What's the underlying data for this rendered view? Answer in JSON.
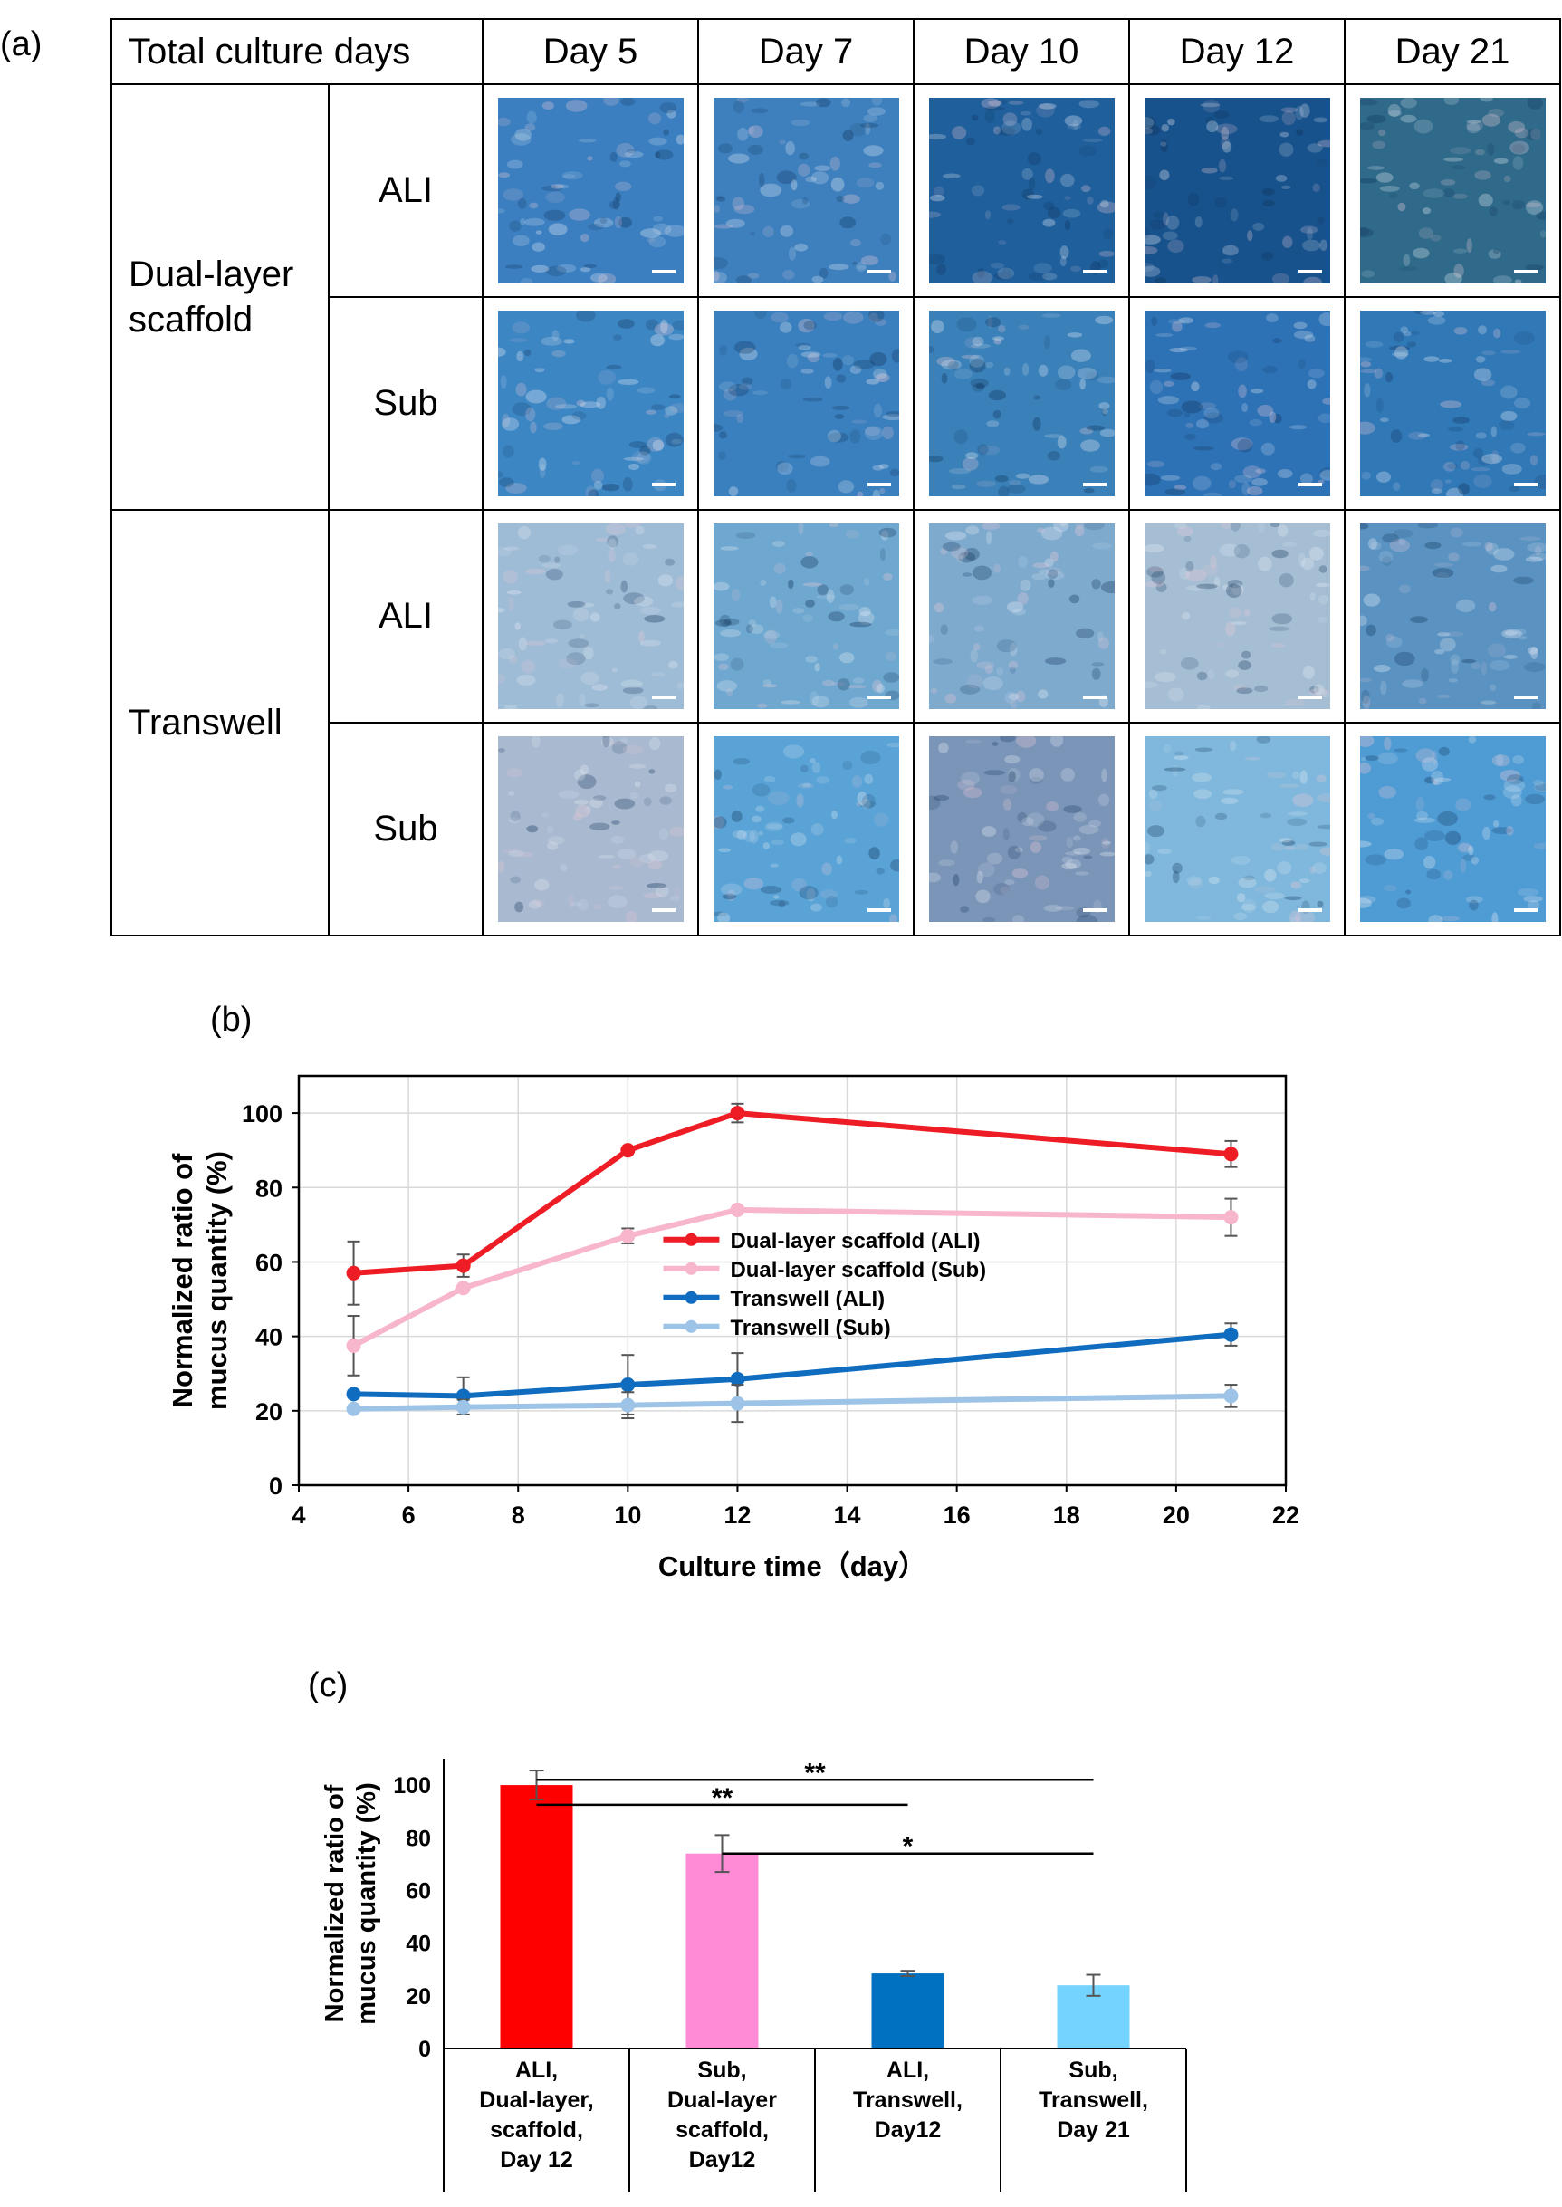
{
  "panels": {
    "a": "(a)",
    "b": "(b)",
    "c": "(c)"
  },
  "table": {
    "header": [
      "Total culture days",
      "Day 5",
      "Day 7",
      "Day 10",
      "Day 12",
      "Day 21"
    ],
    "groups": [
      {
        "label_lines": [
          "Dual-layer",
          "scaffold"
        ],
        "rows": [
          {
            "label": "ALI",
            "tones": [
              "#3b7fc0",
              "#3e80be",
              "#1f5f9c",
              "#18528c",
              "#2f6a8a"
            ]
          },
          {
            "label": "Sub",
            "tones": [
              "#3d86c4",
              "#3a7fbe",
              "#3a80b9",
              "#2e72b6",
              "#3178b7"
            ]
          }
        ]
      },
      {
        "label_lines": [
          "Transwell"
        ],
        "rows": [
          {
            "label": "ALI",
            "tones": [
              "#9fbcd6",
              "#6ea7cf",
              "#7eaace",
              "#a5bed4",
              "#5a93c2"
            ]
          },
          {
            "label": "Sub",
            "tones": [
              "#a8b9d0",
              "#5aa3d6",
              "#7b95b8",
              "#7fb8dc",
              "#4f9bd4"
            ]
          }
        ]
      }
    ],
    "tile_colors": {
      "light": "#e9eef5",
      "dark": "#0d2f55",
      "pink": "#e9c9d6",
      "scale_bar": "#ffffff"
    }
  },
  "chart_data": [
    {
      "type": "line",
      "panel": "(b)",
      "xlabel": "Culture time（day）",
      "ylabel_lines": [
        "Normalized ratio of",
        "mucus quantity  (%)"
      ],
      "xlim": [
        4,
        22
      ],
      "ylim": [
        0,
        110
      ],
      "xticks": [
        4,
        6,
        8,
        10,
        12,
        14,
        16,
        18,
        20,
        22
      ],
      "yticks": [
        0,
        20,
        40,
        60,
        80,
        100
      ],
      "grid": true,
      "legend_position": "center-right",
      "series": [
        {
          "name": "Dual-layer scaffold (ALI)",
          "color": "#ee1c24",
          "x": [
            5,
            7,
            10,
            12,
            21
          ],
          "y": [
            57,
            59,
            90,
            100,
            89
          ],
          "err": [
            8.5,
            3,
            0,
            2.5,
            3.5
          ]
        },
        {
          "name": "Dual-layer scaffold (Sub)",
          "color": "#f7b6cc",
          "x": [
            5,
            7,
            10,
            12,
            21
          ],
          "y": [
            37.5,
            53,
            67,
            74,
            72
          ],
          "err": [
            8,
            0,
            2,
            0,
            5
          ]
        },
        {
          "name": "Transwell (ALI)",
          "color": "#0f6cbf",
          "x": [
            5,
            7,
            10,
            12,
            21
          ],
          "y": [
            24.5,
            24,
            27,
            28.5,
            40.5
          ],
          "err": [
            0,
            5,
            8,
            7,
            3
          ]
        },
        {
          "name": "Transwell (Sub)",
          "color": "#9dc3e6",
          "x": [
            5,
            7,
            10,
            12,
            21
          ],
          "y": [
            20.5,
            21,
            21.5,
            22,
            24
          ],
          "err": [
            0,
            2,
            3.5,
            5,
            3
          ]
        }
      ]
    },
    {
      "type": "bar",
      "panel": "(c)",
      "ylabel_lines": [
        "Normalized ratio of",
        "mucus quantity  (%)"
      ],
      "ylim": [
        0,
        110
      ],
      "yticks": [
        0,
        20,
        40,
        60,
        80,
        100
      ],
      "grid": false,
      "categories": [
        [
          "ALI,",
          "Dual-layer,",
          "scaffold,",
          "Day 12"
        ],
        [
          "Sub,",
          "Dual-layer",
          "scaffold,",
          "Day12"
        ],
        [
          "ALI,",
          "Transwell,",
          "Day12"
        ],
        [
          "Sub,",
          "Transwell,",
          "Day 21"
        ]
      ],
      "values": [
        100,
        74,
        28.5,
        24
      ],
      "errors": [
        5.5,
        7,
        1,
        4
      ],
      "colors": [
        "#ff0000",
        "#ff8ad6",
        "#0070c0",
        "#75d3ff"
      ],
      "significance": [
        {
          "from": 0,
          "to": 3,
          "y": 102,
          "label": "**"
        },
        {
          "from": 0,
          "to": 2,
          "y": 92.5,
          "label": "**"
        },
        {
          "from": 1,
          "to": 3,
          "y": 74,
          "label": "*"
        }
      ]
    }
  ]
}
